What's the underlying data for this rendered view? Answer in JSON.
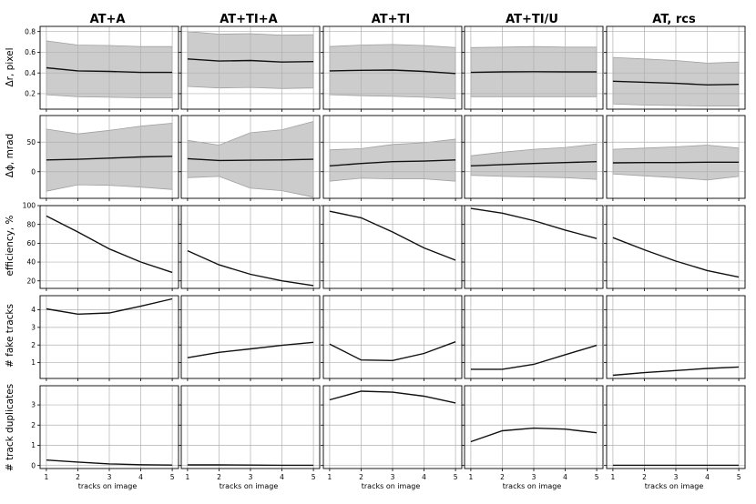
{
  "columns": [
    "AT+A",
    "AT+TI+A",
    "AT+TI",
    "AT+TI/U",
    "AT, rcs"
  ],
  "xlabel": "tracks on image",
  "chart_data": {
    "type": "line",
    "x": [
      1,
      2,
      3,
      4,
      5
    ],
    "xticks": [
      1,
      2,
      3,
      4,
      5
    ],
    "grid": true,
    "rows": [
      {
        "ylabel": "Δr, pixel",
        "ylim": [
          0.05,
          0.85
        ],
        "yticks": [
          0.2,
          0.4,
          0.6,
          0.8
        ],
        "ytick_labels": [
          "0.2",
          "0.4",
          "0.6",
          "0.8"
        ],
        "has_band": true,
        "panels": [
          {
            "column": "AT+A",
            "mean": [
              0.45,
              0.42,
              0.415,
              0.405,
              0.405
            ],
            "low": [
              0.19,
              0.17,
              0.165,
              0.16,
              0.16
            ],
            "high": [
              0.71,
              0.67,
              0.665,
              0.655,
              0.655
            ]
          },
          {
            "column": "AT+TI+A",
            "mean": [
              0.535,
              0.515,
              0.52,
              0.505,
              0.51
            ],
            "low": [
              0.27,
              0.255,
              0.26,
              0.25,
              0.255
            ],
            "high": [
              0.8,
              0.775,
              0.78,
              0.765,
              0.77
            ]
          },
          {
            "column": "AT+TI",
            "mean": [
              0.42,
              0.425,
              0.428,
              0.415,
              0.395
            ],
            "low": [
              0.19,
              0.18,
              0.175,
              0.165,
              0.15
            ],
            "high": [
              0.655,
              0.67,
              0.675,
              0.665,
              0.645
            ]
          },
          {
            "column": "AT+TI/U",
            "mean": [
              0.405,
              0.41,
              0.412,
              0.41,
              0.41
            ],
            "low": [
              0.17,
              0.17,
              0.17,
              0.17,
              0.17
            ],
            "high": [
              0.645,
              0.65,
              0.655,
              0.65,
              0.65
            ]
          },
          {
            "column": "AT, rcs",
            "mean": [
              0.32,
              0.31,
              0.3,
              0.285,
              0.29
            ],
            "low": [
              0.1,
              0.09,
              0.085,
              0.08,
              0.08
            ],
            "high": [
              0.55,
              0.535,
              0.52,
              0.495,
              0.505
            ]
          }
        ]
      },
      {
        "ylabel": "Δϕ, mrad",
        "ylim": [
          -45,
          95
        ],
        "yticks": [
          0,
          50
        ],
        "ytick_labels": [
          "0",
          "50"
        ],
        "has_band": true,
        "panels": [
          {
            "column": "AT+A",
            "mean": [
              20,
              21,
              23,
              25,
              26
            ],
            "low": [
              -33,
              -22,
              -23,
              -26,
              -30
            ],
            "high": [
              72,
              64,
              70,
              77,
              82
            ]
          },
          {
            "column": "AT+TI+A",
            "mean": [
              22,
              19,
              19.5,
              20,
              21
            ],
            "low": [
              -10,
              -8,
              -28,
              -32,
              -43
            ],
            "high": [
              53,
              45,
              66,
              71,
              85
            ]
          },
          {
            "column": "AT+TI",
            "mean": [
              10,
              14,
              17,
              18,
              20
            ],
            "low": [
              -16,
              -11,
              -12,
              -12,
              -16
            ],
            "high": [
              37,
              39,
              46,
              49,
              55
            ]
          },
          {
            "column": "AT+TI/U",
            "mean": [
              10,
              12,
              14,
              15.5,
              17
            ],
            "low": [
              -6,
              -8,
              -9,
              -10,
              -13
            ],
            "high": [
              27,
              33,
              38,
              41,
              47
            ]
          },
          {
            "column": "AT, rcs",
            "mean": [
              15,
              15.5,
              15.5,
              16,
              16
            ],
            "low": [
              -4,
              -7,
              -10,
              -14,
              -8
            ],
            "high": [
              38,
              40,
              42,
              45,
              40
            ]
          }
        ]
      },
      {
        "ylabel": "efficiency, %",
        "ylim": [
          12,
          100
        ],
        "yticks": [
          20,
          40,
          60,
          80,
          100
        ],
        "ytick_labels": [
          "20",
          "40",
          "60",
          "80",
          "100"
        ],
        "has_band": false,
        "panels": [
          {
            "column": "AT+A",
            "mean": [
              89,
              72,
              54,
              40,
              29
            ]
          },
          {
            "column": "AT+TI+A",
            "mean": [
              52,
              37,
              27,
              20,
              15
            ]
          },
          {
            "column": "AT+TI",
            "mean": [
              94,
              87,
              72,
              55,
              42
            ]
          },
          {
            "column": "AT+TI/U",
            "mean": [
              97,
              92,
              84,
              74,
              65
            ]
          },
          {
            "column": "AT, rcs",
            "mean": [
              66,
              53,
              41,
              31,
              24
            ]
          }
        ]
      },
      {
        "ylabel": "# fake tracks",
        "ylim": [
          0.1,
          4.8
        ],
        "yticks": [
          1,
          2,
          3,
          4
        ],
        "ytick_labels": [
          "1",
          "2",
          "3",
          "4"
        ],
        "has_band": false,
        "panels": [
          {
            "column": "AT+A",
            "mean": [
              4.05,
              3.75,
              3.82,
              4.2,
              4.62
            ]
          },
          {
            "column": "AT+TI+A",
            "mean": [
              1.28,
              1.58,
              1.78,
              1.98,
              2.15
            ]
          },
          {
            "column": "AT+TI",
            "mean": [
              2.05,
              1.15,
              1.12,
              1.52,
              2.18
            ]
          },
          {
            "column": "AT+TI/U",
            "mean": [
              0.62,
              0.62,
              0.9,
              1.45,
              1.98
            ]
          },
          {
            "column": "AT, rcs",
            "mean": [
              0.28,
              0.43,
              0.55,
              0.67,
              0.75
            ]
          }
        ]
      },
      {
        "ylabel": "# track duplicates",
        "ylim": [
          -0.15,
          3.95
        ],
        "yticks": [
          0,
          1,
          2,
          3
        ],
        "ytick_labels": [
          "0",
          "1",
          "2",
          "3"
        ],
        "has_band": false,
        "panels": [
          {
            "column": "AT+A",
            "mean": [
              0.27,
              0.17,
              0.08,
              0.04,
              0.02
            ]
          },
          {
            "column": "AT+TI+A",
            "mean": [
              0.03,
              0.03,
              0.02,
              0.01,
              0.01
            ]
          },
          {
            "column": "AT+TI",
            "mean": [
              3.25,
              3.68,
              3.63,
              3.43,
              3.1
            ]
          },
          {
            "column": "AT+TI/U",
            "mean": [
              1.18,
              1.72,
              1.85,
              1.8,
              1.62
            ]
          },
          {
            "column": "AT, rcs",
            "mean": [
              0.01,
              0.01,
              0.01,
              0.01,
              0.01
            ]
          }
        ]
      }
    ]
  },
  "style": {
    "line_color": "#111111",
    "band_color": "#cccccc",
    "grid_color": "#b0b0b0"
  }
}
